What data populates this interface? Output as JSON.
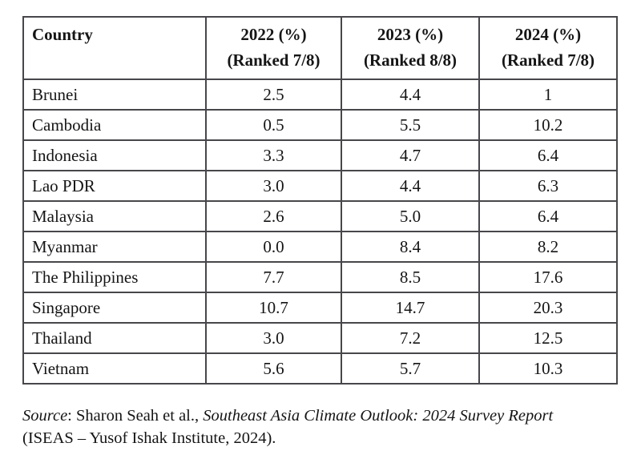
{
  "colors": {
    "background": "#ffffff",
    "table_border": "#47474b",
    "text": "#151515"
  },
  "table": {
    "headers": [
      {
        "line1": "Country",
        "line2": ""
      },
      {
        "line1": "2022 (%)",
        "line2": "(Ranked 7/8)"
      },
      {
        "line1": "2023 (%)",
        "line2": "(Ranked 8/8)"
      },
      {
        "line1": "2024 (%)",
        "line2": "(Ranked 7/8)"
      }
    ],
    "rows": [
      {
        "country": "Brunei",
        "y2022": "2.5",
        "y2023": "4.4",
        "y2024": "1"
      },
      {
        "country": "Cambodia",
        "y2022": "0.5",
        "y2023": "5.5",
        "y2024": "10.2"
      },
      {
        "country": "Indonesia",
        "y2022": "3.3",
        "y2023": "4.7",
        "y2024": "6.4"
      },
      {
        "country": "Lao PDR",
        "y2022": "3.0",
        "y2023": "4.4",
        "y2024": "6.3"
      },
      {
        "country": "Malaysia",
        "y2022": "2.6",
        "y2023": "5.0",
        "y2024": "6.4"
      },
      {
        "country": "Myanmar",
        "y2022": "0.0",
        "y2023": "8.4",
        "y2024": "8.2"
      },
      {
        "country": "The Philippines",
        "y2022": "7.7",
        "y2023": "8.5",
        "y2024": "17.6"
      },
      {
        "country": "Singapore",
        "y2022": "10.7",
        "y2023": "14.7",
        "y2024": "20.3"
      },
      {
        "country": "Thailand",
        "y2022": "3.0",
        "y2023": "7.2",
        "y2024": "12.5"
      },
      {
        "country": "Vietnam",
        "y2022": "5.6",
        "y2023": "5.7",
        "y2024": "10.3"
      }
    ]
  },
  "source_note": {
    "segments": [
      {
        "text": "Source",
        "italic": true
      },
      {
        "text": ": Sharon Seah et al., ",
        "italic": false
      },
      {
        "text": "Southeast Asia Climate Outlook: 2024 Survey Report",
        "italic": true
      },
      {
        "break": true
      },
      {
        "text": "(ISEAS – Yusof Ishak Institute, 2024).",
        "italic": false
      }
    ]
  },
  "chart_data": {
    "type": "table",
    "title": "",
    "categories": [
      "Brunei",
      "Cambodia",
      "Indonesia",
      "Lao PDR",
      "Malaysia",
      "Myanmar",
      "The Philippines",
      "Singapore",
      "Thailand",
      "Vietnam"
    ],
    "series": [
      {
        "name": "2022 (%) (Ranked 7/8)",
        "values": [
          2.5,
          0.5,
          3.3,
          3.0,
          2.6,
          0.0,
          7.7,
          10.7,
          3.0,
          5.6
        ]
      },
      {
        "name": "2023 (%) (Ranked 8/8)",
        "values": [
          4.4,
          5.5,
          4.7,
          4.4,
          5.0,
          8.4,
          8.5,
          14.7,
          7.2,
          5.7
        ]
      },
      {
        "name": "2024 (%) (Ranked 7/8)",
        "values": [
          1,
          10.2,
          6.4,
          6.3,
          6.4,
          8.2,
          17.6,
          20.3,
          12.5,
          10.3
        ]
      }
    ]
  }
}
